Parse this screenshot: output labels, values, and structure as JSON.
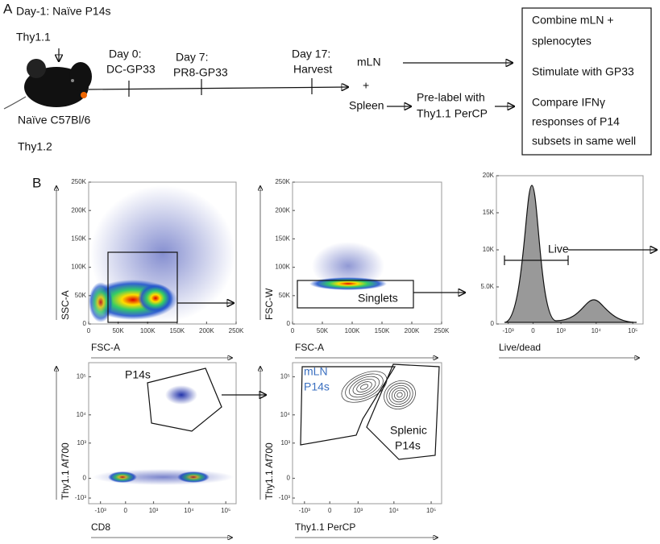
{
  "panel_a": {
    "label": "A",
    "day_minus1": [
      "Day-1: Naïve P14s",
      "Thy1.1"
    ],
    "host": [
      "Naïve C57Bl/6",
      "Thy1.2"
    ],
    "day0": [
      "Day 0:",
      "DC-GP33"
    ],
    "day7": [
      "Day 7:",
      "PR8-GP33"
    ],
    "day17": [
      "Day 17:",
      "Harvest"
    ],
    "mln": "mLN",
    "plus": "+",
    "spleen": "Spleen",
    "prelabel": [
      "Pre-label with",
      "Thy1.1 PerCP"
    ],
    "box": [
      "Combine mLN +",
      "splenocytes",
      "Stimulate with GP33",
      "Compare IFNγ",
      "responses of P14",
      "subsets in same well"
    ]
  },
  "panel_b": {
    "label": "B",
    "plots": [
      {
        "x_label": "FSC-A",
        "y_label": "SSC-A",
        "xticks": [
          "0",
          "50K",
          "100K",
          "150K",
          "200K",
          "250K"
        ],
        "yticks": [
          "0",
          "50K",
          "100K",
          "150K",
          "200K",
          "250K"
        ]
      },
      {
        "x_label": "FSC-A",
        "y_label": "FSC-W",
        "xticks": [
          "0",
          "50K",
          "100K",
          "150K",
          "200K",
          "250K"
        ],
        "yticks": [
          "0",
          "50K",
          "100K",
          "150K",
          "200K",
          "250K"
        ],
        "gate": "Singlets"
      },
      {
        "x_label": "Live/dead",
        "xticks": [
          "-10³",
          "0",
          "10³",
          "10⁴",
          "10⁵"
        ],
        "yticks": [
          "0",
          "5.0K",
          "10K",
          "15K",
          "20K"
        ],
        "gate": "Live"
      },
      {
        "x_label": "CD8",
        "y_label": "Thy1.1 Af700",
        "xticks": [
          "-10³",
          "0",
          "10³",
          "10⁴",
          "10⁵"
        ],
        "yticks": [
          "-10³",
          "0",
          "10³",
          "10⁴",
          "10⁵"
        ],
        "gate": "P14s"
      },
      {
        "x_label": "Thy1.1 PerCP",
        "y_label": "Thy1.1 Af700",
        "xticks": [
          "-10³",
          "0",
          "10³",
          "10⁴",
          "10⁵"
        ],
        "yticks": [
          "-10³",
          "0",
          "10³",
          "10⁴",
          "10⁵"
        ],
        "gates": [
          [
            "mLN",
            "P14s"
          ],
          [
            "Splenic",
            "P14s"
          ]
        ]
      }
    ]
  }
}
